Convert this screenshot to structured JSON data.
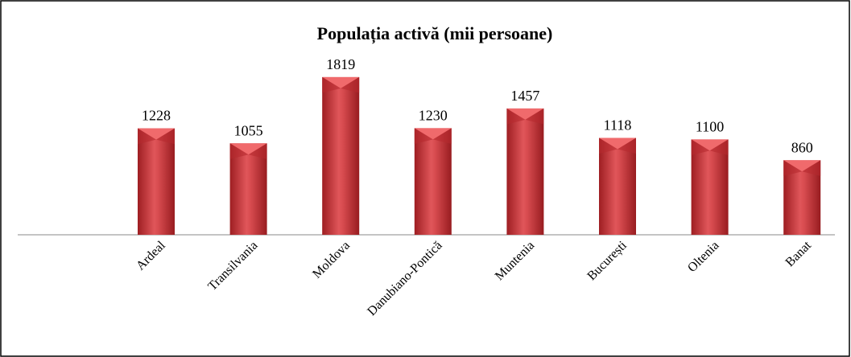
{
  "chart_data": {
    "type": "bar",
    "title": "Populația activă (mii persoane)",
    "categories": [
      "Ardeal",
      "Transilvania",
      "Moldova",
      "Danubiano-Pontică",
      "Muntenia",
      "București",
      "Oltenia",
      "Banat"
    ],
    "values": [
      1228,
      1055,
      1819,
      1230,
      1457,
      1118,
      1100,
      860
    ],
    "color": "#c83a3c"
  }
}
